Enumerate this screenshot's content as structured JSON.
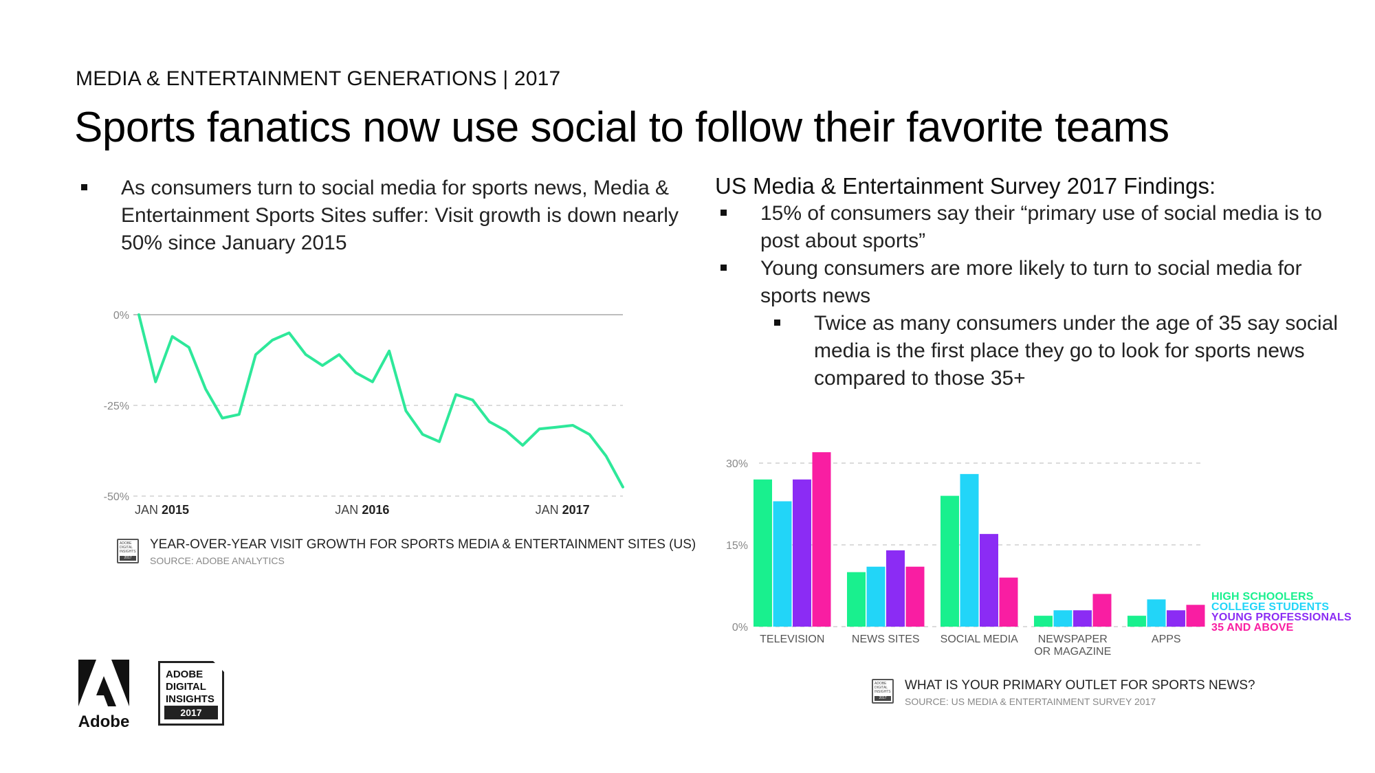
{
  "header": {
    "subtitle": "MEDIA & ENTERTAINMENT GENERATIONS | 2017",
    "title": "Sports fanatics now use social to follow their favorite teams"
  },
  "left": {
    "bullet": "As consumers turn to social media for sports news, Media & Entertainment Sports Sites suffer: Visit growth is down nearly 50% since January 2015"
  },
  "right": {
    "heading": "US Media & Entertainment Survey 2017 Findings:",
    "bullets": [
      "15% of consumers say their “primary use of social media is to post about sports”",
      "Young consumers are more likely to turn to social media for sports news"
    ],
    "sub_bullet": "Twice as many consumers under the age of 35 say social media is the first place they go to look for sports news compared to those 35+"
  },
  "line_caption": {
    "title": "YEAR-OVER-YEAR VISIT GROWTH FOR SPORTS MEDIA & ENTERTAINMENT SITES (US)",
    "source": "SOURCE: ADOBE ANALYTICS"
  },
  "bar_caption": {
    "title": "WHAT IS YOUR PRIMARY OUTLET FOR SPORTS NEWS?",
    "source": "SOURCE: US MEDIA & ENTERTAINMENT SURVEY 2017"
  },
  "badge_mini": {
    "lines": [
      "ADOBE",
      "DIGITAL",
      "INSIGHTS"
    ],
    "year": "2017"
  },
  "logos": {
    "adobe_word": "Adobe",
    "adi_lines": [
      "ADOBE",
      "DIGITAL",
      "INSIGHTS"
    ],
    "adi_year": "2017"
  },
  "chart_data": [
    {
      "type": "line",
      "title": "YEAR-OVER-YEAR VISIT GROWTH FOR SPORTS MEDIA & ENTERTAINMENT SITES (US)",
      "y_ticks": [
        "0%",
        "-25%",
        "-50%"
      ],
      "ylim": [
        -50,
        0
      ],
      "x_tick_labels": [
        {
          "month": "JAN",
          "year": "2015",
          "index": 0
        },
        {
          "month": "JAN",
          "year": "2016",
          "index": 12
        },
        {
          "month": "JAN",
          "year": "2017",
          "index": 24
        }
      ],
      "series": [
        {
          "name": "Visit growth",
          "color": "#2ee89a",
          "values": [
            0,
            -18.5,
            -6,
            -9,
            -20.5,
            -28.5,
            -27.5,
            -11,
            -7,
            -5,
            -11,
            -14,
            -11,
            -16,
            -18.5,
            -10,
            -26.5,
            -33,
            -35,
            -22,
            -23.5,
            -29.5,
            -32,
            -36,
            -31.5,
            -31,
            -30.5,
            -33,
            -39,
            -47.5
          ]
        }
      ]
    },
    {
      "type": "bar",
      "title": "WHAT IS YOUR PRIMARY OUTLET FOR SPORTS NEWS?",
      "categories": [
        [
          "TELEVISION"
        ],
        [
          "NEWS SITES"
        ],
        [
          "SOCIAL MEDIA"
        ],
        [
          "NEWSPAPER",
          "OR MAGAZINE"
        ],
        [
          "APPS"
        ]
      ],
      "y_ticks": [
        "30%",
        "15%",
        "0%"
      ],
      "ylim": [
        0,
        30
      ],
      "series": [
        {
          "name": "HIGH SCHOOLERS",
          "color": "#19f08e",
          "values": [
            27,
            10,
            24,
            2,
            2
          ]
        },
        {
          "name": "COLLEGE STUDENTS",
          "color": "#22d5f8",
          "values": [
            23,
            11,
            28,
            3,
            5
          ]
        },
        {
          "name": "YOUNG PROFESSIONALS",
          "color": "#8b2cf4",
          "values": [
            27,
            14,
            17,
            3,
            3
          ]
        },
        {
          "name": "35 AND ABOVE",
          "color": "#f91ea2",
          "values": [
            32,
            11,
            9,
            6,
            4
          ]
        }
      ]
    }
  ]
}
